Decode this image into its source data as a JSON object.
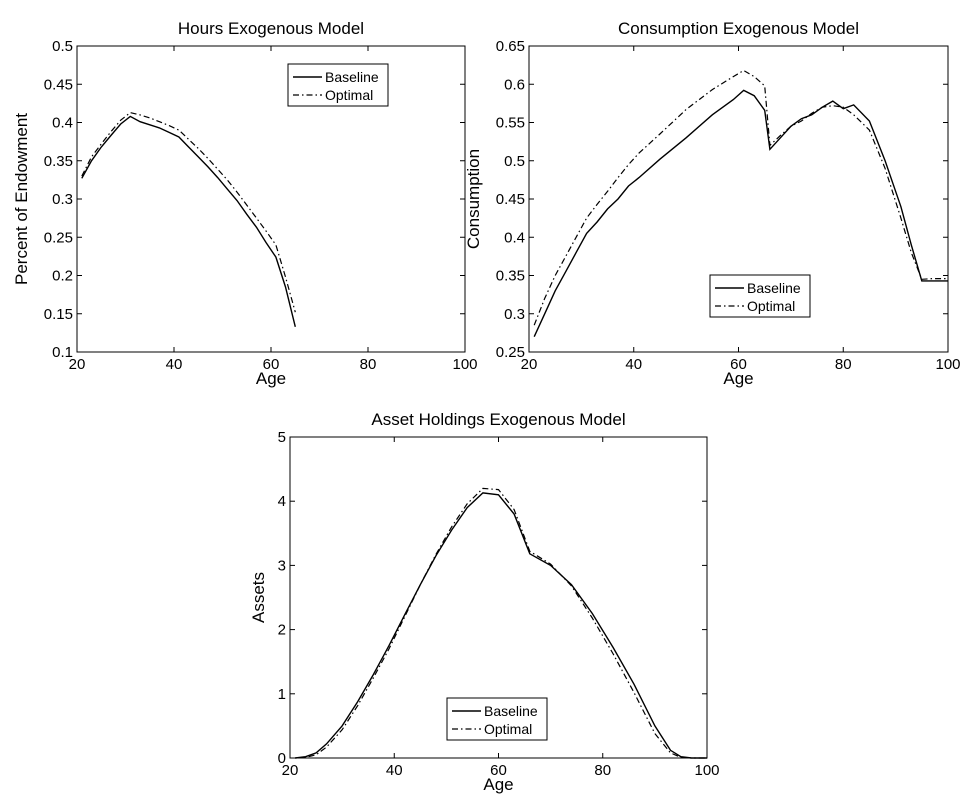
{
  "chart_data": [
    {
      "type": "line",
      "title": "Hours Exogenous Model",
      "xlabel": "Age",
      "ylabel": "Percent of Endowment",
      "xlim": [
        20,
        100
      ],
      "ylim": [
        0.1,
        0.5
      ],
      "xticks": [
        "20",
        "40",
        "60",
        "80",
        "100"
      ],
      "yticks": [
        "0.1",
        "0.15",
        "0.2",
        "0.25",
        "0.3",
        "0.35",
        "0.4",
        "0.45",
        "0.5"
      ],
      "legend": "top-center",
      "series": [
        {
          "name": "Baseline",
          "style": "solid",
          "x": [
            21,
            23,
            25,
            27,
            29,
            31,
            33,
            35,
            37,
            39,
            41,
            43,
            45,
            47,
            49,
            51,
            53,
            55,
            57,
            59,
            61,
            63,
            65
          ],
          "y": [
            0.327,
            0.35,
            0.368,
            0.383,
            0.398,
            0.408,
            0.401,
            0.397,
            0.393,
            0.387,
            0.381,
            0.368,
            0.355,
            0.342,
            0.328,
            0.313,
            0.298,
            0.28,
            0.263,
            0.243,
            0.224,
            0.185,
            0.133
          ]
        },
        {
          "name": "Optimal",
          "style": "dashdot",
          "x": [
            21,
            23,
            25,
            27,
            29,
            31,
            33,
            35,
            37,
            39,
            41,
            43,
            45,
            47,
            49,
            51,
            53,
            55,
            57,
            59,
            61,
            63,
            65
          ],
          "y": [
            0.33,
            0.355,
            0.372,
            0.388,
            0.403,
            0.413,
            0.41,
            0.406,
            0.401,
            0.396,
            0.39,
            0.378,
            0.366,
            0.353,
            0.339,
            0.325,
            0.309,
            0.292,
            0.275,
            0.258,
            0.24,
            0.198,
            0.152
          ]
        }
      ]
    },
    {
      "type": "line",
      "title": "Consumption Exogenous Model",
      "xlabel": "Age",
      "ylabel": "Consumption",
      "xlim": [
        20,
        100
      ],
      "ylim": [
        0.25,
        0.65
      ],
      "xticks": [
        "20",
        "40",
        "60",
        "80",
        "100"
      ],
      "yticks": [
        "0.25",
        "0.3",
        "0.35",
        "0.4",
        "0.45",
        "0.5",
        "0.55",
        "0.6",
        "0.65"
      ],
      "legend": "bottom-right",
      "series": [
        {
          "name": "Baseline",
          "style": "solid",
          "x": [
            21,
            23,
            25,
            27,
            29,
            31,
            33,
            35,
            37,
            39,
            41,
            45,
            50,
            55,
            59,
            61,
            63,
            65,
            66,
            68,
            70,
            72,
            74,
            76,
            78,
            80,
            82,
            85,
            88,
            91,
            93,
            95,
            97,
            100
          ],
          "y": [
            0.27,
            0.3,
            0.33,
            0.355,
            0.38,
            0.405,
            0.42,
            0.437,
            0.45,
            0.467,
            0.478,
            0.502,
            0.53,
            0.56,
            0.58,
            0.592,
            0.585,
            0.566,
            0.515,
            0.53,
            0.545,
            0.555,
            0.56,
            0.57,
            0.578,
            0.568,
            0.573,
            0.552,
            0.5,
            0.44,
            0.39,
            0.343,
            0.343,
            0.343
          ]
        },
        {
          "name": "Optimal",
          "style": "dashdot",
          "x": [
            21,
            23,
            25,
            27,
            29,
            31,
            33,
            35,
            37,
            39,
            41,
            45,
            50,
            55,
            59,
            61,
            63,
            65,
            66,
            68,
            70,
            72,
            74,
            76,
            78,
            80,
            82,
            85,
            88,
            91,
            93,
            95,
            97,
            100
          ],
          "y": [
            0.285,
            0.32,
            0.35,
            0.375,
            0.4,
            0.425,
            0.443,
            0.46,
            0.478,
            0.495,
            0.51,
            0.535,
            0.567,
            0.593,
            0.61,
            0.618,
            0.61,
            0.598,
            0.52,
            0.533,
            0.545,
            0.552,
            0.562,
            0.57,
            0.572,
            0.57,
            0.56,
            0.54,
            0.49,
            0.425,
            0.38,
            0.345,
            0.346,
            0.346
          ]
        }
      ]
    },
    {
      "type": "line",
      "title": "Asset Holdings Exogenous Model",
      "xlabel": "Age",
      "ylabel": "Assets",
      "xlim": [
        20,
        100
      ],
      "ylim": [
        0,
        5
      ],
      "xticks": [
        "20",
        "40",
        "60",
        "80",
        "100"
      ],
      "yticks": [
        "0",
        "1",
        "2",
        "3",
        "4",
        "5"
      ],
      "legend": "bottom-center",
      "series": [
        {
          "name": "Baseline",
          "style": "solid",
          "x": [
            21,
            23,
            25,
            27,
            30,
            33,
            36,
            39,
            42,
            45,
            48,
            51,
            54,
            57,
            60,
            63,
            66,
            70,
            74,
            78,
            82,
            86,
            90,
            93,
            95,
            97,
            100
          ],
          "y": [
            0,
            0.02,
            0.08,
            0.22,
            0.5,
            0.88,
            1.3,
            1.75,
            2.23,
            2.7,
            3.15,
            3.55,
            3.9,
            4.13,
            4.1,
            3.8,
            3.18,
            3.0,
            2.7,
            2.25,
            1.72,
            1.15,
            0.5,
            0.12,
            0.02,
            0,
            0
          ]
        },
        {
          "name": "Optimal",
          "style": "dashdot",
          "x": [
            21,
            23,
            25,
            27,
            30,
            33,
            36,
            39,
            42,
            45,
            48,
            51,
            54,
            57,
            60,
            63,
            66,
            70,
            74,
            78,
            82,
            86,
            90,
            93,
            95,
            97,
            100
          ],
          "y": [
            0,
            0.01,
            0.05,
            0.17,
            0.44,
            0.82,
            1.25,
            1.7,
            2.2,
            2.7,
            3.17,
            3.6,
            3.96,
            4.2,
            4.18,
            3.87,
            3.22,
            3.02,
            2.68,
            2.18,
            1.62,
            1.02,
            0.38,
            0.08,
            0.01,
            0,
            0
          ]
        }
      ]
    }
  ]
}
